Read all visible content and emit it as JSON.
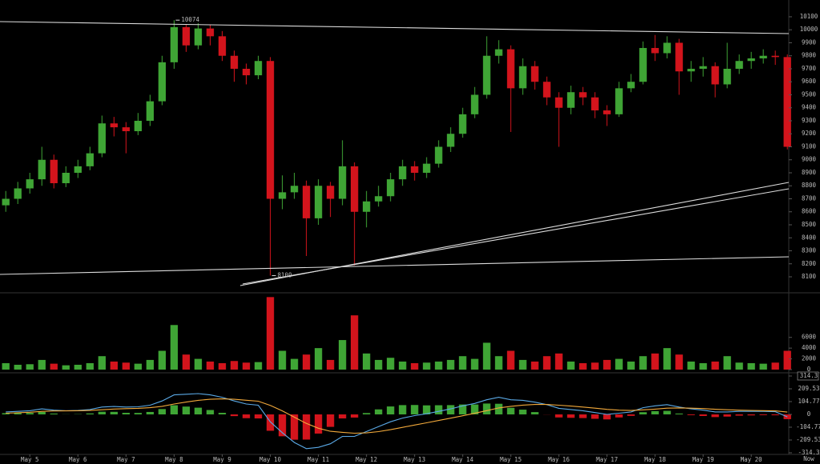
{
  "chart_data": {
    "type": "candlestick",
    "x": [
      4.5,
      4.75,
      5,
      5.25,
      5.5,
      5.75,
      6,
      6.25,
      6.5,
      6.75,
      7,
      7.25,
      7.5,
      7.75,
      8,
      8.25,
      8.5,
      8.75,
      9,
      9.25,
      9.5,
      9.75,
      10,
      10.25,
      10.5,
      10.75,
      11,
      11.25,
      11.5,
      11.75,
      12,
      12.25,
      12.5,
      12.75,
      13,
      13.25,
      13.5,
      13.75,
      14,
      14.25,
      14.5,
      14.75,
      15,
      15.25,
      15.5,
      15.75,
      16,
      16.25,
      16.5,
      16.75,
      17,
      17.25,
      17.5,
      17.75,
      18,
      18.25,
      18.5,
      18.75,
      19,
      19.25,
      19.5,
      19.75,
      20,
      20.25,
      20.5,
      20.75
    ],
    "xlim": [
      4.38,
      20.78
    ],
    "xticks": [
      {
        "value": 5,
        "label": "May 5"
      },
      {
        "value": 6,
        "label": "May 6"
      },
      {
        "value": 7,
        "label": "May 7"
      },
      {
        "value": 8,
        "label": "May 8"
      },
      {
        "value": 9,
        "label": "May 9"
      },
      {
        "value": 10,
        "label": "May 10"
      },
      {
        "value": 11,
        "label": "May 11"
      },
      {
        "value": 12,
        "label": "May 12"
      },
      {
        "value": 13,
        "label": "May 13"
      },
      {
        "value": 14,
        "label": "May 14"
      },
      {
        "value": 15,
        "label": "May 15"
      },
      {
        "value": 16,
        "label": "May 16"
      },
      {
        "value": 17,
        "label": "May 17"
      },
      {
        "value": 18,
        "label": "May 18"
      },
      {
        "value": 19,
        "label": "May 19"
      },
      {
        "value": 20,
        "label": "May 20"
      }
    ],
    "x_end_label": "Now",
    "open": [
      8650,
      8700,
      8780,
      8850,
      9000,
      8820,
      8900,
      8950,
      9050,
      9280,
      9250,
      9220,
      9300,
      9450,
      9750,
      10020,
      9880,
      10010,
      9950,
      9800,
      9700,
      9650,
      9760,
      8700,
      8750,
      8800,
      8550,
      8800,
      8700,
      8950,
      8600,
      8680,
      8720,
      8850,
      8950,
      8900,
      8970,
      9100,
      9200,
      9350,
      9500,
      9800,
      9850,
      9550,
      9720,
      9600,
      9480,
      9400,
      9520,
      9480,
      9380,
      9350,
      9550,
      9600,
      9860,
      9820,
      9900,
      9680,
      9700,
      9720,
      9580,
      9700,
      9760,
      9780,
      9800,
      9790
    ],
    "high": [
      8760,
      8830,
      8900,
      9100,
      9040,
      8950,
      9000,
      9100,
      9340,
      9330,
      9290,
      9360,
      9500,
      9800,
      10074,
      10040,
      10050,
      10040,
      9990,
      9840,
      9740,
      9800,
      9790,
      8880,
      8900,
      8840,
      8850,
      8830,
      9150,
      8980,
      8760,
      8800,
      8900,
      9000,
      8990,
      9020,
      9150,
      9250,
      9400,
      9560,
      9950,
      9920,
      9880,
      9780,
      9760,
      9640,
      9520,
      9570,
      9560,
      9520,
      9420,
      9600,
      9660,
      9910,
      9960,
      9950,
      9930,
      9760,
      9790,
      9750,
      9900,
      9810,
      9830,
      9850,
      9840,
      9810
    ],
    "low": [
      8600,
      8660,
      8740,
      8800,
      8780,
      8790,
      8860,
      8920,
      9020,
      9180,
      9050,
      9190,
      9260,
      9420,
      9700,
      9830,
      9850,
      9880,
      9760,
      9600,
      9580,
      9620,
      8109,
      8620,
      8700,
      8260,
      8500,
      8560,
      8650,
      8187,
      8480,
      8640,
      8680,
      8800,
      8840,
      8860,
      8940,
      9060,
      9170,
      9320,
      9470,
      9740,
      9214,
      9500,
      9540,
      9420,
      9100,
      9350,
      9420,
      9320,
      9260,
      9330,
      9520,
      9580,
      9760,
      9780,
      9500,
      9600,
      9640,
      9480,
      9550,
      9660,
      9700,
      9740,
      9730,
      9080
    ],
    "close": [
      8700,
      8780,
      8850,
      9000,
      8820,
      8900,
      8950,
      9050,
      9280,
      9250,
      9220,
      9300,
      9450,
      9750,
      10020,
      9880,
      10010,
      9950,
      9800,
      9700,
      9650,
      9760,
      8700,
      8750,
      8800,
      8550,
      8800,
      8700,
      8950,
      8600,
      8680,
      8720,
      8850,
      8950,
      8900,
      8970,
      9100,
      9200,
      9350,
      9500,
      9800,
      9850,
      9550,
      9720,
      9600,
      9480,
      9400,
      9520,
      9480,
      9380,
      9350,
      9550,
      9600,
      9860,
      9820,
      9900,
      9680,
      9700,
      9720,
      9580,
      9700,
      9760,
      9780,
      9800,
      9790,
      9100
    ],
    "ylim": [
      7977,
      10229
    ],
    "yticks": [
      8100,
      8200,
      8300,
      8400,
      8500,
      8600,
      8700,
      8800,
      8900,
      9000,
      9100,
      9200,
      9300,
      9400,
      9500,
      9600,
      9700,
      9800,
      9900,
      10000,
      10100
    ],
    "up_color": "#3fa535",
    "down_color": "#d3141c",
    "annotations": [
      {
        "x": 8,
        "y": 10074
      },
      {
        "x": 10,
        "y": 8109
      }
    ],
    "volume": {
      "values": [
        1200,
        900,
        1000,
        1800,
        1100,
        800,
        900,
        1200,
        2500,
        1500,
        1300,
        1100,
        1800,
        3500,
        8300,
        2800,
        2000,
        1500,
        1200,
        1600,
        1300,
        1400,
        13500,
        3500,
        2000,
        2800,
        4000,
        1800,
        5500,
        10100,
        3000,
        1800,
        2200,
        1500,
        1200,
        1300,
        1500,
        1800,
        2500,
        2000,
        5000,
        2500,
        3500,
        1800,
        1500,
        2500,
        3000,
        1500,
        1200,
        1300,
        1800,
        2000,
        1500,
        2500,
        3000,
        4000,
        2800,
        1500,
        1200,
        1500,
        2500,
        1300,
        1200,
        1100,
        1300,
        3500
      ],
      "ylim": [
        0,
        14000
      ],
      "yticks": [
        0,
        2000,
        4000,
        6000
      ]
    },
    "macd": {
      "macd": [
        20,
        25,
        30,
        45,
        35,
        30,
        32,
        40,
        60,
        65,
        60,
        62,
        75,
        110,
        160,
        165,
        170,
        160,
        140,
        110,
        85,
        75,
        -60,
        -150,
        -230,
        -280,
        -270,
        -240,
        -180,
        -180,
        -140,
        -100,
        -60,
        -30,
        -10,
        5,
        25,
        45,
        70,
        90,
        120,
        140,
        120,
        115,
        100,
        80,
        50,
        40,
        30,
        15,
        0,
        10,
        20,
        55,
        70,
        80,
        60,
        45,
        35,
        20,
        20,
        25,
        25,
        25,
        22,
        -20
      ],
      "signal": [
        10,
        14,
        18,
        25,
        28,
        29,
        30,
        32,
        38,
        44,
        47,
        50,
        55,
        66,
        85,
        101,
        115,
        124,
        127,
        124,
        116,
        108,
        74,
        29,
        -23,
        -74,
        -113,
        -138,
        -147,
        -154,
        -151,
        -141,
        -125,
        -106,
        -87,
        -69,
        -50,
        -31,
        -11,
        9,
        31,
        53,
        66,
        76,
        81,
        81,
        75,
        68,
        60,
        51,
        41,
        35,
        32,
        37,
        43,
        51,
        53,
        51,
        48,
        42,
        38,
        35,
        33,
        31,
        29,
        19
      ],
      "histogram": [
        10,
        11,
        12,
        20,
        7,
        1,
        2,
        8,
        22,
        21,
        13,
        12,
        20,
        44,
        75,
        64,
        55,
        36,
        13,
        -14,
        -31,
        -33,
        -134,
        -179,
        -207,
        -206,
        -157,
        -102,
        -33,
        -26,
        11,
        41,
        65,
        76,
        77,
        74,
        75,
        76,
        81,
        81,
        89,
        87,
        54,
        39,
        19,
        -1,
        -25,
        -28,
        -30,
        -36,
        -41,
        -25,
        -12,
        18,
        27,
        29,
        7,
        -6,
        -13,
        -22,
        -18,
        -10,
        -8,
        -6,
        -7,
        -39
      ],
      "ylim": [
        -314.3,
        314.3
      ],
      "yticks": [
        314.3,
        209.53,
        104.77,
        0,
        -104.77,
        -209.53,
        -314.3
      ],
      "macd_color": "#5aa9e6",
      "signal_color": "#f2a93b"
    }
  }
}
